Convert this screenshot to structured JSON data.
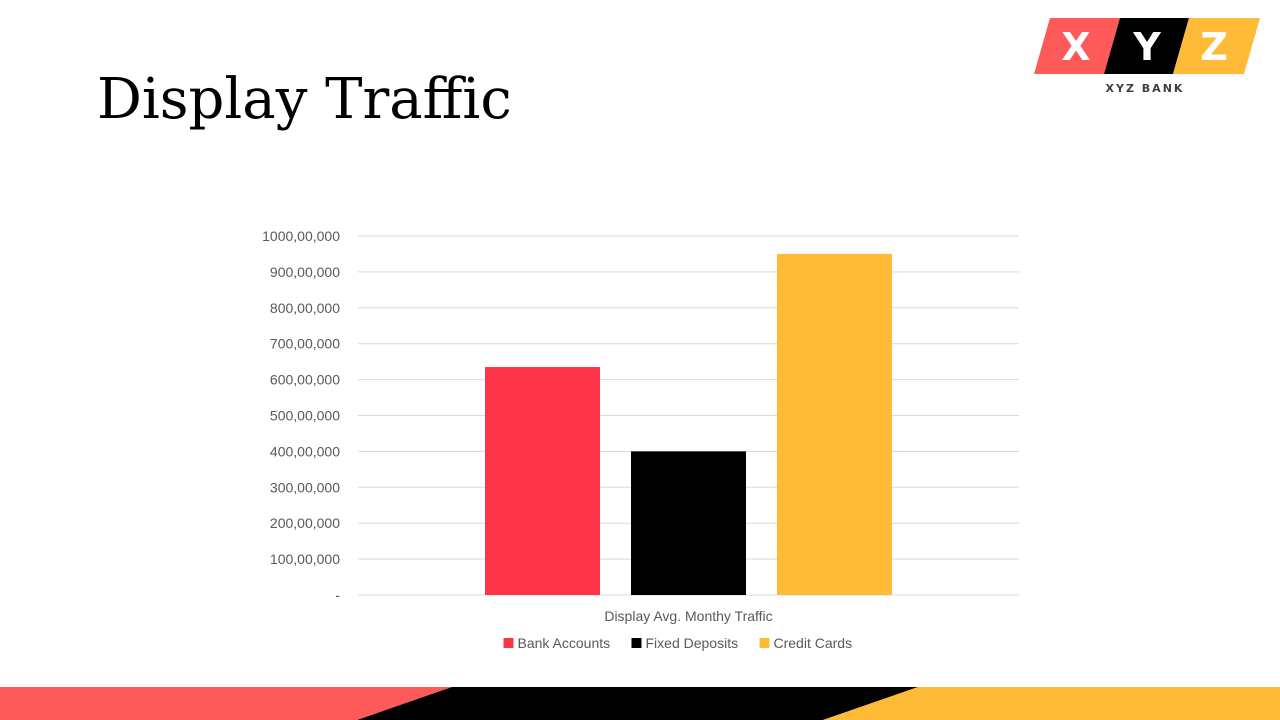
{
  "slide": {
    "title": "Display Traffic"
  },
  "logo": {
    "letters": [
      "X",
      "Y",
      "Z"
    ],
    "caption": "XYZ BANK"
  },
  "colors": {
    "red": "#ff3347",
    "coral": "#ff5a5a",
    "black": "#000000",
    "amber": "#ffbb38",
    "grid": "#d9d9d9",
    "axis_text": "#595959"
  },
  "chart_data": {
    "type": "bar",
    "categories": [
      "Display Avg. Monthy Traffic"
    ],
    "series": [
      {
        "name": "Bank Accounts",
        "color": "#ff3347",
        "values": [
          63500000
        ]
      },
      {
        "name": "Fixed Deposits",
        "color": "#000000",
        "values": [
          40000000
        ]
      },
      {
        "name": "Credit Cards",
        "color": "#ffbb38",
        "values": [
          95000000
        ]
      }
    ],
    "ylim": [
      0,
      100000000
    ],
    "yticks": [
      0,
      10000000,
      20000000,
      30000000,
      40000000,
      50000000,
      60000000,
      70000000,
      80000000,
      90000000,
      100000000
    ],
    "ytick_labels": [
      "-",
      "100,00,000",
      "200,00,000",
      "300,00,000",
      "400,00,000",
      "500,00,000",
      "600,00,000",
      "700,00,000",
      "800,00,000",
      "900,00,000",
      "1000,00,000"
    ],
    "grid": true,
    "legend": "bottom"
  }
}
